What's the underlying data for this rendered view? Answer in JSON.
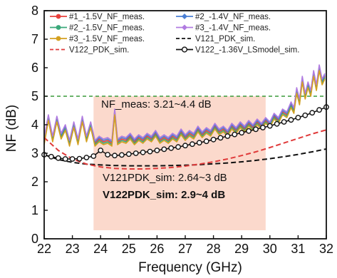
{
  "chart_data": {
    "type": "line",
    "xlabel": "Frequency (GHz)",
    "ylabel": "NF (dB)",
    "xlim": [
      22,
      32
    ],
    "ylim": [
      0,
      8
    ],
    "x_ticks": [
      22,
      23,
      24,
      25,
      26,
      27,
      28,
      29,
      30,
      31,
      32
    ],
    "y_ticks": [
      0,
      1,
      2,
      3,
      4,
      5,
      6,
      7,
      8
    ],
    "legend_position": "top",
    "reference_line": {
      "y": 5,
      "color": "#3a9a3a",
      "style": "dashed"
    },
    "shaded_region": {
      "x": [
        23.75,
        29.85
      ],
      "y": [
        0.3,
        5.0
      ],
      "color": "#fbd9cc"
    },
    "annotations": {
      "meas": "NF_meas: 3.21~4.4 dB",
      "v121": "V121PDK_sim: 2.64~3 dB",
      "v122_prefix": "V122PDK_sim: ",
      "v122_value": "2.9~4 dB"
    },
    "series": [
      {
        "name": "#1_-1.5V_NF_meas.",
        "color": "#e8413c",
        "marker": "dot",
        "style": "solid",
        "x": [
          22,
          22.15,
          22.3,
          22.45,
          22.6,
          22.75,
          22.9,
          23.05,
          23.2,
          23.35,
          23.5,
          23.65,
          23.8,
          23.95,
          24.1,
          24.25,
          24.4,
          24.5,
          24.6,
          24.75,
          24.9,
          25.05,
          25.2,
          25.35,
          25.5,
          25.65,
          25.8,
          25.95,
          26.1,
          26.25,
          26.4,
          26.55,
          26.7,
          26.85,
          27,
          27.15,
          27.3,
          27.45,
          27.6,
          27.75,
          27.9,
          28.05,
          28.2,
          28.35,
          28.5,
          28.65,
          28.8,
          28.95,
          29.1,
          29.25,
          29.4,
          29.55,
          29.7,
          29.85,
          30,
          30.15,
          30.3,
          30.45,
          30.6,
          30.75,
          30.85,
          30.95,
          31.05,
          31.15,
          31.25,
          31.35,
          31.45,
          31.55,
          31.65,
          31.75,
          31.85,
          31.95
        ],
        "y": [
          3.4,
          4.3,
          3.5,
          4.2,
          3.6,
          3.9,
          3.3,
          4.0,
          3.4,
          4.2,
          3.5,
          4.0,
          3.35,
          3.5,
          3.4,
          3.45,
          3.35,
          4.5,
          3.4,
          3.5,
          3.45,
          3.6,
          3.4,
          3.55,
          3.45,
          3.6,
          3.5,
          3.7,
          3.45,
          3.55,
          3.45,
          3.6,
          3.5,
          3.75,
          3.55,
          3.7,
          3.6,
          3.85,
          3.65,
          3.8,
          3.7,
          3.95,
          3.75,
          3.85,
          3.7,
          3.95,
          3.8,
          4.0,
          3.85,
          4.05,
          3.9,
          4.1,
          3.95,
          4.15,
          4.0,
          4.3,
          4.15,
          4.45,
          4.35,
          4.7,
          4.5,
          5.2,
          4.8,
          5.6,
          5.0,
          5.4,
          5.1,
          5.8,
          5.3,
          6.0,
          5.5,
          5.7
        ]
      },
      {
        "name": "#2_-1.4V_NF_meas.",
        "color": "#4a7fd4",
        "marker": "diamond",
        "style": "solid",
        "x": [
          22,
          22.15,
          22.3,
          22.45,
          22.6,
          22.75,
          22.9,
          23.05,
          23.2,
          23.35,
          23.5,
          23.65,
          23.8,
          23.95,
          24.1,
          24.25,
          24.4,
          24.5,
          24.6,
          24.75,
          24.9,
          25.05,
          25.2,
          25.35,
          25.5,
          25.65,
          25.8,
          25.95,
          26.1,
          26.25,
          26.4,
          26.55,
          26.7,
          26.85,
          27,
          27.15,
          27.3,
          27.45,
          27.6,
          27.75,
          27.9,
          28.05,
          28.2,
          28.35,
          28.5,
          28.65,
          28.8,
          28.95,
          29.1,
          29.25,
          29.4,
          29.55,
          29.7,
          29.85,
          30,
          30.15,
          30.3,
          30.45,
          30.6,
          30.75,
          30.85,
          30.95,
          31.05,
          31.15,
          31.25,
          31.35,
          31.45,
          31.55,
          31.65,
          31.75,
          31.85,
          31.95
        ],
        "y": [
          3.45,
          4.25,
          3.55,
          4.15,
          3.65,
          3.95,
          3.35,
          3.95,
          3.45,
          4.15,
          3.55,
          3.95,
          3.4,
          3.55,
          3.45,
          3.5,
          3.4,
          4.45,
          3.45,
          3.55,
          3.5,
          3.65,
          3.45,
          3.6,
          3.5,
          3.65,
          3.55,
          3.75,
          3.5,
          3.6,
          3.5,
          3.65,
          3.55,
          3.8,
          3.6,
          3.75,
          3.65,
          3.9,
          3.7,
          3.85,
          3.75,
          4.0,
          3.8,
          3.9,
          3.75,
          4.0,
          3.85,
          4.05,
          3.9,
          4.1,
          3.95,
          4.15,
          4.0,
          4.2,
          4.05,
          4.35,
          4.2,
          4.5,
          4.4,
          4.75,
          4.55,
          5.25,
          4.85,
          5.65,
          5.05,
          5.45,
          5.15,
          5.85,
          5.35,
          6.05,
          5.55,
          5.75
        ]
      },
      {
        "name": "#2_-1.5V_NF_meas.",
        "color": "#3aa87a",
        "marker": "dot",
        "style": "solid",
        "x": [
          22,
          22.15,
          22.3,
          22.45,
          22.6,
          22.75,
          22.9,
          23.05,
          23.2,
          23.35,
          23.5,
          23.65,
          23.8,
          23.95,
          24.1,
          24.25,
          24.4,
          24.5,
          24.6,
          24.75,
          24.9,
          25.05,
          25.2,
          25.35,
          25.5,
          25.65,
          25.8,
          25.95,
          26.1,
          26.25,
          26.4,
          26.55,
          26.7,
          26.85,
          27,
          27.15,
          27.3,
          27.45,
          27.6,
          27.75,
          27.9,
          28.05,
          28.2,
          28.35,
          28.5,
          28.65,
          28.8,
          28.95,
          29.1,
          29.25,
          29.4,
          29.55,
          29.7,
          29.85,
          30,
          30.15,
          30.3,
          30.45,
          30.6,
          30.75,
          30.85,
          30.95,
          31.05,
          31.15,
          31.25,
          31.35,
          31.45,
          31.55,
          31.65,
          31.75,
          31.85,
          31.95
        ],
        "y": [
          3.5,
          4.2,
          3.45,
          4.25,
          3.55,
          3.85,
          3.4,
          4.05,
          3.35,
          4.25,
          3.45,
          4.05,
          3.3,
          3.45,
          3.35,
          3.4,
          3.3,
          4.4,
          3.35,
          3.45,
          3.4,
          3.55,
          3.35,
          3.5,
          3.4,
          3.55,
          3.45,
          3.65,
          3.4,
          3.5,
          3.4,
          3.55,
          3.45,
          3.7,
          3.5,
          3.65,
          3.55,
          3.8,
          3.6,
          3.75,
          3.65,
          3.9,
          3.7,
          3.8,
          3.65,
          3.9,
          3.75,
          3.95,
          3.8,
          4.0,
          3.85,
          4.05,
          3.9,
          4.1,
          3.95,
          4.25,
          4.1,
          4.4,
          4.3,
          4.65,
          4.45,
          5.15,
          4.75,
          5.55,
          4.95,
          5.35,
          5.05,
          5.75,
          5.25,
          5.95,
          5.45,
          5.65
        ]
      },
      {
        "name": "#3_-1.4V_NF_meas.",
        "color": "#b07be0",
        "marker": "diamond",
        "style": "solid",
        "x": [
          22,
          22.15,
          22.3,
          22.45,
          22.6,
          22.75,
          22.9,
          23.05,
          23.2,
          23.35,
          23.5,
          23.65,
          23.8,
          23.95,
          24.1,
          24.25,
          24.4,
          24.5,
          24.6,
          24.75,
          24.9,
          25.05,
          25.2,
          25.35,
          25.5,
          25.65,
          25.8,
          25.95,
          26.1,
          26.25,
          26.4,
          26.55,
          26.7,
          26.85,
          27,
          27.15,
          27.3,
          27.45,
          27.6,
          27.75,
          27.9,
          28.05,
          28.2,
          28.35,
          28.5,
          28.65,
          28.8,
          28.95,
          29.1,
          29.25,
          29.4,
          29.55,
          29.7,
          29.85,
          30,
          30.15,
          30.3,
          30.45,
          30.6,
          30.75,
          30.85,
          30.95,
          31.05,
          31.15,
          31.25,
          31.35,
          31.45,
          31.55,
          31.65,
          31.75,
          31.85,
          31.95
        ],
        "y": [
          3.55,
          4.35,
          3.6,
          4.3,
          3.7,
          4.0,
          3.45,
          4.1,
          3.5,
          4.3,
          3.6,
          4.1,
          3.45,
          3.6,
          3.5,
          3.55,
          3.45,
          4.55,
          3.5,
          3.6,
          3.55,
          3.7,
          3.5,
          3.65,
          3.55,
          3.7,
          3.6,
          3.8,
          3.55,
          3.65,
          3.55,
          3.7,
          3.6,
          3.85,
          3.65,
          3.8,
          3.7,
          3.95,
          3.75,
          3.9,
          3.8,
          4.05,
          3.85,
          3.95,
          3.8,
          4.05,
          3.9,
          4.1,
          3.95,
          4.15,
          4.0,
          4.2,
          4.05,
          4.25,
          4.1,
          4.4,
          4.25,
          4.55,
          4.45,
          4.8,
          4.6,
          5.3,
          4.9,
          5.7,
          5.1,
          5.5,
          5.2,
          5.9,
          5.4,
          6.1,
          5.6,
          5.8
        ]
      },
      {
        "name": "#3_-1.5V_NF_meas.",
        "color": "#d4a020",
        "marker": "dot",
        "style": "solid",
        "x": [
          22,
          22.15,
          22.3,
          22.45,
          22.6,
          22.75,
          22.9,
          23.05,
          23.2,
          23.35,
          23.5,
          23.65,
          23.8,
          23.95,
          24.1,
          24.25,
          24.4,
          24.5,
          24.6,
          24.75,
          24.9,
          25.05,
          25.2,
          25.35,
          25.5,
          25.65,
          25.8,
          25.95,
          26.1,
          26.25,
          26.4,
          26.55,
          26.7,
          26.85,
          27,
          27.15,
          27.3,
          27.45,
          27.6,
          27.75,
          27.9,
          28.05,
          28.2,
          28.35,
          28.5,
          28.65,
          28.8,
          28.95,
          29.1,
          29.25,
          29.4,
          29.55,
          29.7,
          29.85,
          30,
          30.15,
          30.3,
          30.45,
          30.6,
          30.75,
          30.85,
          30.95,
          31.05,
          31.15,
          31.25,
          31.35,
          31.45,
          31.55,
          31.65,
          31.75,
          31.85,
          31.95
        ],
        "y": [
          3.3,
          4.15,
          3.4,
          4.1,
          3.5,
          3.8,
          3.25,
          3.9,
          3.3,
          4.1,
          3.4,
          3.9,
          3.25,
          3.4,
          3.3,
          3.35,
          3.25,
          4.35,
          3.3,
          3.4,
          3.35,
          3.5,
          3.3,
          3.45,
          3.35,
          3.5,
          3.4,
          3.6,
          3.35,
          3.45,
          3.35,
          3.5,
          3.4,
          3.65,
          3.45,
          3.6,
          3.5,
          3.75,
          3.55,
          3.7,
          3.6,
          3.85,
          3.65,
          3.75,
          3.6,
          3.85,
          3.7,
          3.9,
          3.75,
          3.95,
          3.8,
          4.0,
          3.85,
          4.05,
          3.9,
          4.2,
          4.05,
          4.35,
          4.25,
          4.6,
          4.4,
          5.1,
          4.7,
          5.5,
          4.9,
          5.3,
          5.0,
          5.7,
          5.2,
          5.9,
          5.4,
          5.6
        ]
      },
      {
        "name": "V121_PDK_sim.",
        "color": "#111111",
        "marker": "none",
        "style": "dashed",
        "x": [
          22,
          22.5,
          23,
          23.5,
          24,
          24.5,
          25,
          25.5,
          26,
          26.5,
          27,
          27.5,
          28,
          28.5,
          29,
          29.5,
          30,
          30.5,
          31,
          31.5,
          32
        ],
        "y": [
          2.95,
          2.78,
          2.68,
          2.62,
          2.59,
          2.57,
          2.56,
          2.56,
          2.56,
          2.57,
          2.58,
          2.6,
          2.63,
          2.66,
          2.7,
          2.75,
          2.81,
          2.88,
          2.96,
          3.05,
          3.15
        ]
      },
      {
        "name": "V122_PDK_sim.",
        "color": "#e03a3a",
        "marker": "none",
        "style": "dashed",
        "x": [
          22,
          22.5,
          23,
          23.5,
          24,
          24.5,
          25,
          25.5,
          26,
          26.5,
          27,
          27.5,
          28,
          28.5,
          29,
          29.5,
          30,
          30.5,
          31,
          31.5,
          32
        ],
        "y": [
          3.55,
          3.1,
          2.8,
          2.62,
          2.52,
          2.47,
          2.45,
          2.45,
          2.47,
          2.5,
          2.55,
          2.62,
          2.7,
          2.8,
          2.92,
          3.05,
          3.2,
          3.36,
          3.52,
          3.68,
          3.82
        ]
      },
      {
        "name": "V122_-1.36V_LSmodel_sim.",
        "color": "#111111",
        "marker": "circle",
        "style": "solid",
        "x": [
          22,
          22.25,
          22.5,
          22.75,
          23,
          23.25,
          23.5,
          23.75,
          24,
          24.25,
          24.5,
          24.75,
          25,
          25.25,
          25.5,
          25.75,
          26,
          26.25,
          26.5,
          26.75,
          27,
          27.25,
          27.5,
          27.75,
          28,
          28.25,
          28.5,
          28.75,
          29,
          29.25,
          29.5,
          29.75,
          30,
          30.25,
          30.5,
          30.75,
          31,
          31.25,
          31.5,
          31.75,
          32
        ],
        "y": [
          2.95,
          2.88,
          2.83,
          2.8,
          2.8,
          2.81,
          2.85,
          2.9,
          3.1,
          2.95,
          2.92,
          2.94,
          2.97,
          3.0,
          3.03,
          3.06,
          3.1,
          3.14,
          3.18,
          3.22,
          3.27,
          3.32,
          3.37,
          3.42,
          3.48,
          3.54,
          3.6,
          3.66,
          3.72,
          3.78,
          3.84,
          3.9,
          3.96,
          4.03,
          4.1,
          4.17,
          4.25,
          4.33,
          4.42,
          4.52,
          4.62
        ]
      }
    ]
  }
}
